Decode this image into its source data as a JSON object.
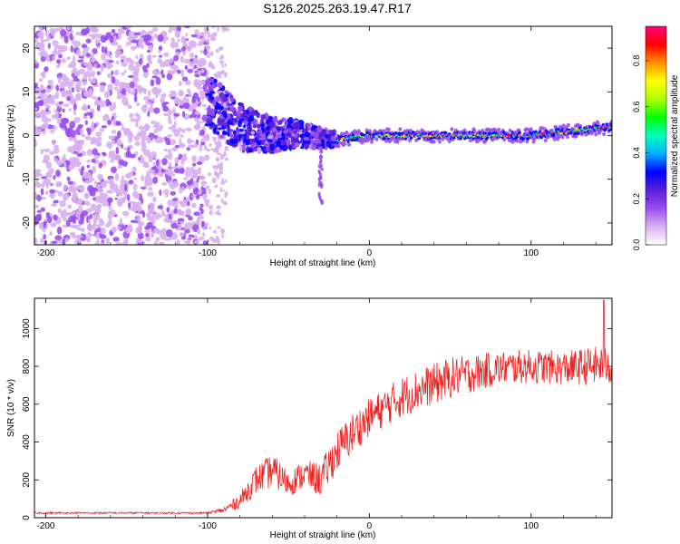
{
  "title": "S126.2025.263.19.47.R17",
  "chart_data": [
    {
      "type": "heatmap",
      "xlabel": "Height of straight line (km)",
      "ylabel": "Frequency (Hz)",
      "xlim": [
        -207,
        150
      ],
      "ylim": [
        -25,
        25
      ],
      "x_ticks": [
        -200,
        -100,
        0,
        100
      ],
      "y_ticks": [
        -20,
        -10,
        0,
        10,
        20
      ],
      "colorbar": {
        "label": "Normalized spectral amplitude",
        "range": [
          0.0,
          0.95
        ],
        "ticks": [
          0.0,
          0.2,
          0.4,
          0.6,
          0.8
        ],
        "colors": [
          "#ffffff",
          "#d8b0f0",
          "#9a4ff0",
          "#5a1fd8",
          "#0000ff",
          "#00b0ff",
          "#00ffc0",
          "#00ff00",
          "#b0ff00",
          "#ffff00",
          "#ff9000",
          "#ff0000",
          "#ff0080"
        ]
      },
      "description_regions": [
        {
          "x_range": [
            -207,
            -100
          ],
          "freq_range": [
            -25,
            25
          ],
          "amplitude": [
            0.05,
            0.15
          ]
        },
        {
          "x_range": [
            -100,
            -20
          ],
          "freq_range": [
            -15,
            10
          ],
          "amplitude": [
            0.1,
            0.35
          ]
        },
        {
          "x_range": [
            -20,
            150
          ],
          "freq_center": [
            -1,
            2
          ],
          "amplitude": [
            0.3,
            0.95
          ]
        }
      ],
      "carrier_track": [
        {
          "x": -100,
          "f": 8
        },
        {
          "x": -90,
          "f": 5
        },
        {
          "x": -80,
          "f": 2
        },
        {
          "x": -70,
          "f": 1
        },
        {
          "x": -60,
          "f": 0
        },
        {
          "x": -50,
          "f": 0.5
        },
        {
          "x": -40,
          "f": 0
        },
        {
          "x": -30,
          "f": -0.5
        },
        {
          "x": -20,
          "f": -1
        },
        {
          "x": 0,
          "f": 0
        },
        {
          "x": 50,
          "f": 0
        },
        {
          "x": 100,
          "f": 0
        },
        {
          "x": 150,
          "f": 2
        }
      ]
    },
    {
      "type": "line",
      "xlabel": "Height of straight line (km)",
      "ylabel": "SNR (10 * v/v)",
      "xlim": [
        -207,
        150
      ],
      "ylim": [
        0,
        1160
      ],
      "x_ticks": [
        -200,
        -100,
        0,
        100
      ],
      "y_ticks": [
        0,
        200,
        400,
        600,
        800,
        1000
      ],
      "color": "#ee2222",
      "envelope": [
        {
          "x": -207,
          "mean": 25,
          "spread": 10
        },
        {
          "x": -100,
          "mean": 25,
          "spread": 10
        },
        {
          "x": -90,
          "mean": 40,
          "spread": 30
        },
        {
          "x": -80,
          "mean": 90,
          "spread": 80
        },
        {
          "x": -70,
          "mean": 200,
          "spread": 150
        },
        {
          "x": -60,
          "mean": 250,
          "spread": 180
        },
        {
          "x": -50,
          "mean": 180,
          "spread": 140
        },
        {
          "x": -40,
          "mean": 230,
          "spread": 150
        },
        {
          "x": -30,
          "mean": 200,
          "spread": 180
        },
        {
          "x": -20,
          "mean": 350,
          "spread": 220
        },
        {
          "x": -10,
          "mean": 450,
          "spread": 220
        },
        {
          "x": 0,
          "mean": 530,
          "spread": 200
        },
        {
          "x": 20,
          "mean": 640,
          "spread": 220
        },
        {
          "x": 50,
          "mean": 740,
          "spread": 220
        },
        {
          "x": 80,
          "mean": 790,
          "spread": 180
        },
        {
          "x": 100,
          "mean": 800,
          "spread": 180
        },
        {
          "x": 120,
          "mean": 790,
          "spread": 180
        },
        {
          "x": 150,
          "mean": 810,
          "spread": 220
        }
      ],
      "peak": {
        "x": 145,
        "y": 1150
      }
    }
  ]
}
